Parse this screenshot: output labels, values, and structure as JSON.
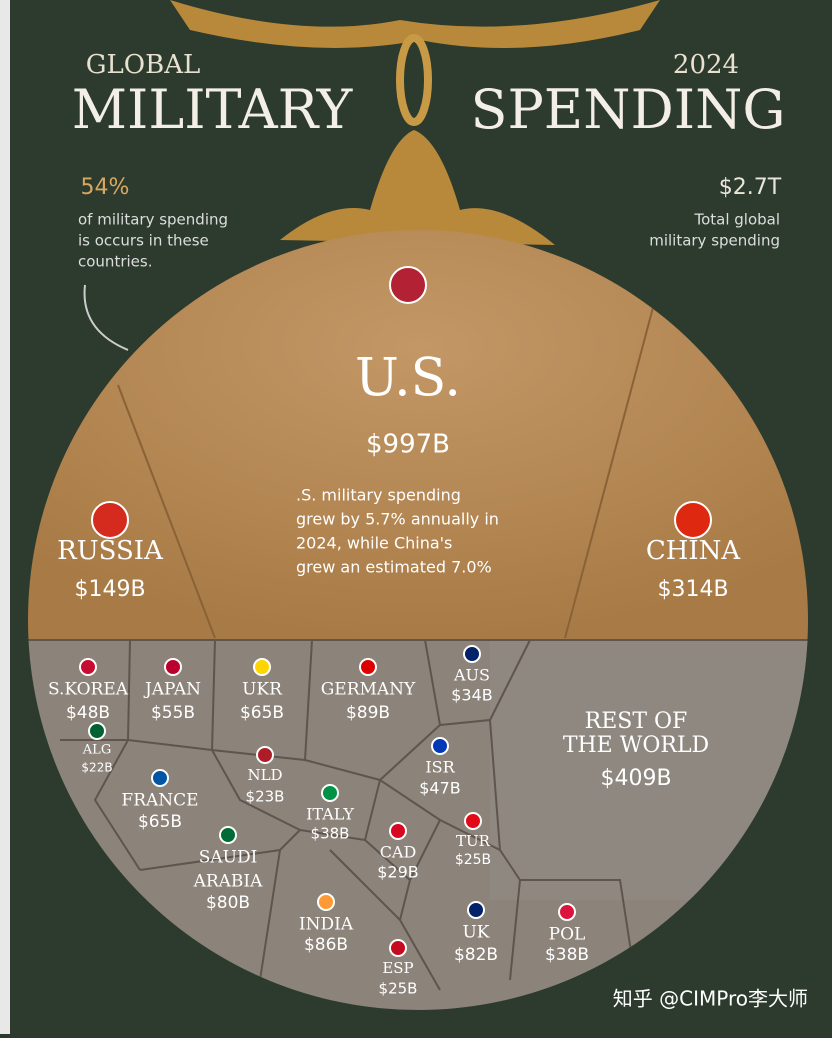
{
  "header": {
    "left_small": "GLOBAL",
    "left_big": "MILITARY",
    "right_small": "2024",
    "right_big": "SPENDING",
    "share": {
      "value": "54%",
      "lines": [
        "of military spending",
        "is occurs in these",
        "countries."
      ]
    },
    "total": {
      "value": "$2.7T",
      "lines": [
        "Total global",
        "military spending"
      ]
    }
  },
  "note": [
    ".S. military spending",
    "grew by 5.7% annually in",
    "2024, while China's",
    "grew an estimated 7.0%"
  ],
  "regions": [
    {
      "name": [
        "U.S."
      ],
      "value": "$997B"
    },
    {
      "name": [
        "RUSSIA"
      ],
      "value": "$149B"
    },
    {
      "name": [
        "CHINA"
      ],
      "value": "$314B"
    },
    {
      "name": [
        "S.KOREA"
      ],
      "value": "$48B"
    },
    {
      "name": [
        "JAPAN"
      ],
      "value": "$55B"
    },
    {
      "name": [
        "UKR"
      ],
      "value": "$65B"
    },
    {
      "name": [
        "GERMANY"
      ],
      "value": "$89B"
    },
    {
      "name": [
        "AUS"
      ],
      "value": "$34B"
    },
    {
      "name": [
        "REST OF",
        "THE WORLD"
      ],
      "value": "$409B"
    },
    {
      "name": [
        "ALG"
      ],
      "value": "$22B"
    },
    {
      "name": [
        "FRANCE"
      ],
      "value": "$65B"
    },
    {
      "name": [
        "NLD"
      ],
      "value": "$23B"
    },
    {
      "name": [
        "ISR"
      ],
      "value": "$47B"
    },
    {
      "name": [
        "ITALY"
      ],
      "value": "$38B"
    },
    {
      "name": [
        "SAUDI",
        "ARABIA"
      ],
      "value": "$80B"
    },
    {
      "name": [
        "CAD"
      ],
      "value": "$29B"
    },
    {
      "name": [
        "TUR"
      ],
      "value": "$25B"
    },
    {
      "name": [
        "INDIA"
      ],
      "value": "$86B"
    },
    {
      "name": [
        "UK"
      ],
      "value": "$82B"
    },
    {
      "name": [
        "POL"
      ],
      "value": "$38B"
    },
    {
      "name": [
        "ESP"
      ],
      "value": "$25B"
    }
  ],
  "watermark": "知乎 @CIMPro李大师"
}
